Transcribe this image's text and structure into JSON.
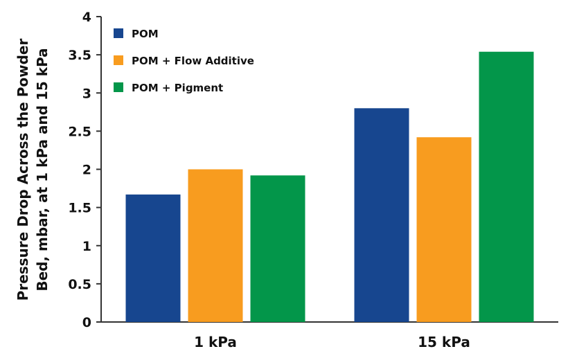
{
  "chart_data": {
    "type": "bar",
    "categories": [
      "1 kPa",
      "15 kPa"
    ],
    "series": [
      {
        "name": "POM",
        "values": [
          1.67,
          2.8
        ],
        "color": "#17468f"
      },
      {
        "name": "POM + Flow Additive",
        "values": [
          2.0,
          2.42
        ],
        "color": "#f89c1f"
      },
      {
        "name": "POM + Pigment",
        "values": [
          1.92,
          3.54
        ],
        "color": "#03964a"
      }
    ],
    "ylabel": [
      "Pressure Drop Across the Powder",
      "Bed, mbar, at 1 kPa and 15 kPa"
    ],
    "ylim": [
      0,
      4
    ],
    "yticks": [
      "0",
      "0.5",
      "1",
      "1.5",
      "2",
      "2.5",
      "3",
      "3.5",
      "4"
    ],
    "legend_position": "top-left",
    "grid": false
  }
}
